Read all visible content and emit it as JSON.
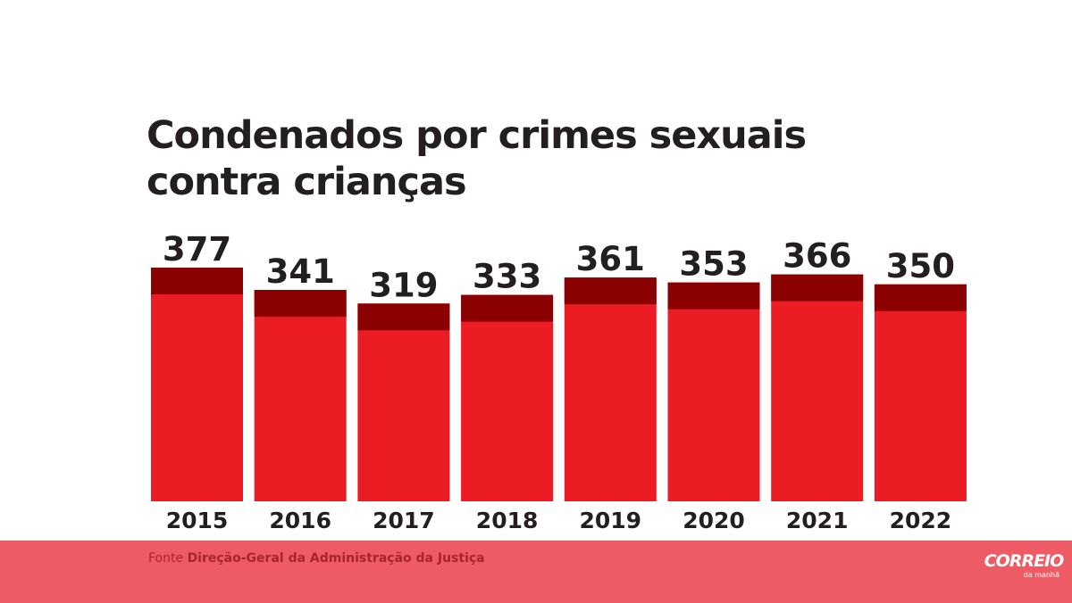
{
  "chart_data": {
    "type": "bar",
    "title_lines": [
      "Condenados por crimes sexuais",
      "contra crianças"
    ],
    "categories": [
      "2015",
      "2016",
      "2017",
      "2018",
      "2019",
      "2020",
      "2021",
      "2022"
    ],
    "values": [
      377,
      341,
      319,
      333,
      361,
      353,
      366,
      350
    ],
    "xlabel": "",
    "ylabel": "",
    "legend": "none",
    "grid": false,
    "colors": {
      "bar": "#ec1c24",
      "bar_top_band": "#8b0000",
      "text": "#231f20"
    }
  },
  "footer": {
    "source_prefix": "Fonte",
    "source_name": "Direção-Geral da Administração da Justiça",
    "background": "#ef5b64"
  },
  "brand": {
    "name": "CORREIO",
    "subtitle": "da manhã"
  }
}
